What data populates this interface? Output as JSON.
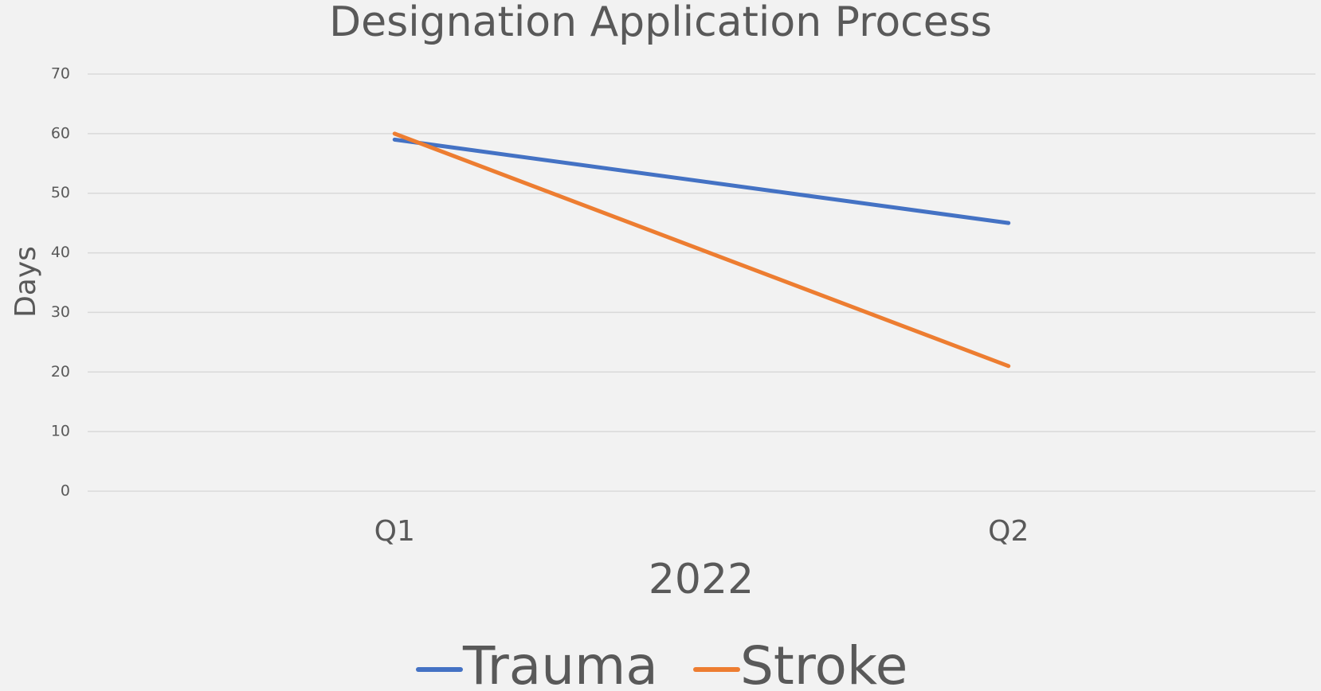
{
  "chart_data": {
    "type": "line",
    "title": "Designation Application Process",
    "x_label": "2022",
    "y_label": "Days",
    "categories": [
      "Q1",
      "Q2"
    ],
    "series": [
      {
        "name": "Trauma",
        "color": "#4472c4",
        "values": [
          59,
          45
        ]
      },
      {
        "name": "Stroke",
        "color": "#ed7d31",
        "values": [
          60,
          21
        ]
      }
    ],
    "ylim": [
      0,
      70
    ],
    "yticks": [
      0,
      10,
      20,
      30,
      40,
      50,
      60,
      70
    ],
    "grid": true,
    "legend": "bottom"
  }
}
